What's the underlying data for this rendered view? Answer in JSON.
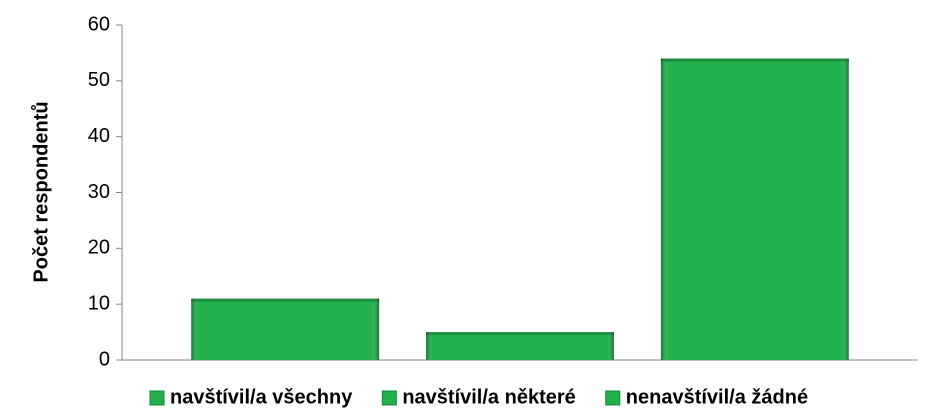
{
  "chart_data": {
    "type": "bar",
    "y_label": "Počet respondentů",
    "categories": [
      null
    ],
    "series": [
      {
        "name": "navštívil/a všechny",
        "color": "#22b14c",
        "values": [
          11
        ]
      },
      {
        "name": "navštívil/a některé",
        "color": "#22b14c",
        "values": [
          5
        ]
      },
      {
        "name": "nenavštívil/a žádné",
        "color": "#22b14c",
        "values": [
          54
        ]
      }
    ],
    "ylim": [
      0,
      60
    ],
    "yticks": [
      0,
      10,
      20,
      30,
      40,
      50,
      60
    ],
    "grid": false,
    "legend": "bottom"
  }
}
